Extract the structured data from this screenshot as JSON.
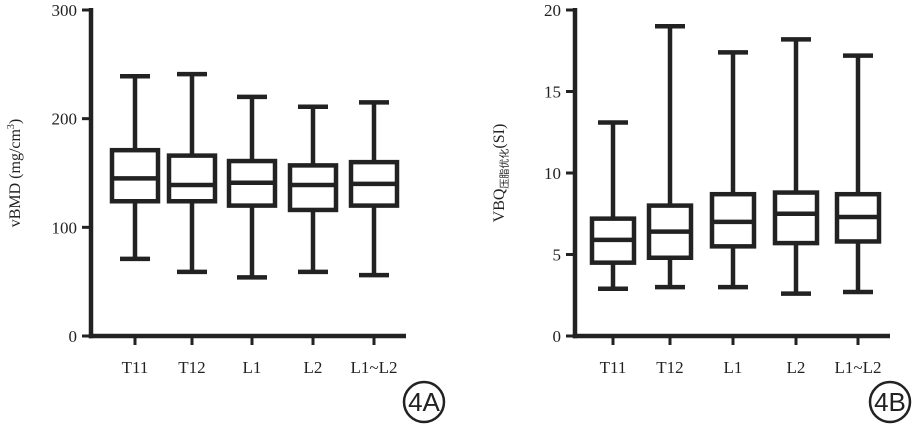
{
  "chart_data": [
    {
      "type": "boxplot",
      "ylabel_main": "vBMD (mg/cm",
      "ylabel_sup": "3",
      "ylabel_end": ")",
      "ylim": [
        0,
        300
      ],
      "yticks": [
        0,
        100,
        200,
        300
      ],
      "categories": [
        "T11",
        "T12",
        "L1",
        "L2",
        "L1~L2"
      ],
      "boxes": [
        {
          "min": 71,
          "q1": 124,
          "median": 145,
          "q3": 171,
          "max": 239
        },
        {
          "min": 59,
          "q1": 124,
          "median": 139,
          "q3": 166,
          "max": 241
        },
        {
          "min": 54,
          "q1": 120,
          "median": 141,
          "q3": 161,
          "max": 220
        },
        {
          "min": 59,
          "q1": 116,
          "median": 139,
          "q3": 157,
          "max": 211
        },
        {
          "min": 56,
          "q1": 120,
          "median": 140,
          "q3": 160,
          "max": 215
        }
      ],
      "badge": "4A"
    },
    {
      "type": "boxplot",
      "ylabel_main": "VBQ",
      "ylabel_sub": "压脂优化",
      "ylabel_end": "(SI)",
      "ylim": [
        0,
        20
      ],
      "yticks": [
        0,
        5,
        10,
        15,
        20
      ],
      "categories": [
        "T11",
        "T12",
        "L1",
        "L2",
        "L1~L2"
      ],
      "boxes": [
        {
          "min": 2.9,
          "q1": 4.5,
          "median": 5.9,
          "q3": 7.2,
          "max": 13.1
        },
        {
          "min": 3.0,
          "q1": 4.8,
          "median": 6.4,
          "q3": 8.0,
          "max": 19.0
        },
        {
          "min": 3.0,
          "q1": 5.5,
          "median": 7.0,
          "q3": 8.7,
          "max": 17.4
        },
        {
          "min": 2.6,
          "q1": 5.7,
          "median": 7.5,
          "q3": 8.8,
          "max": 18.2
        },
        {
          "min": 2.7,
          "q1": 5.8,
          "median": 7.3,
          "q3": 8.7,
          "max": 17.2
        }
      ],
      "badge": "4B"
    }
  ]
}
